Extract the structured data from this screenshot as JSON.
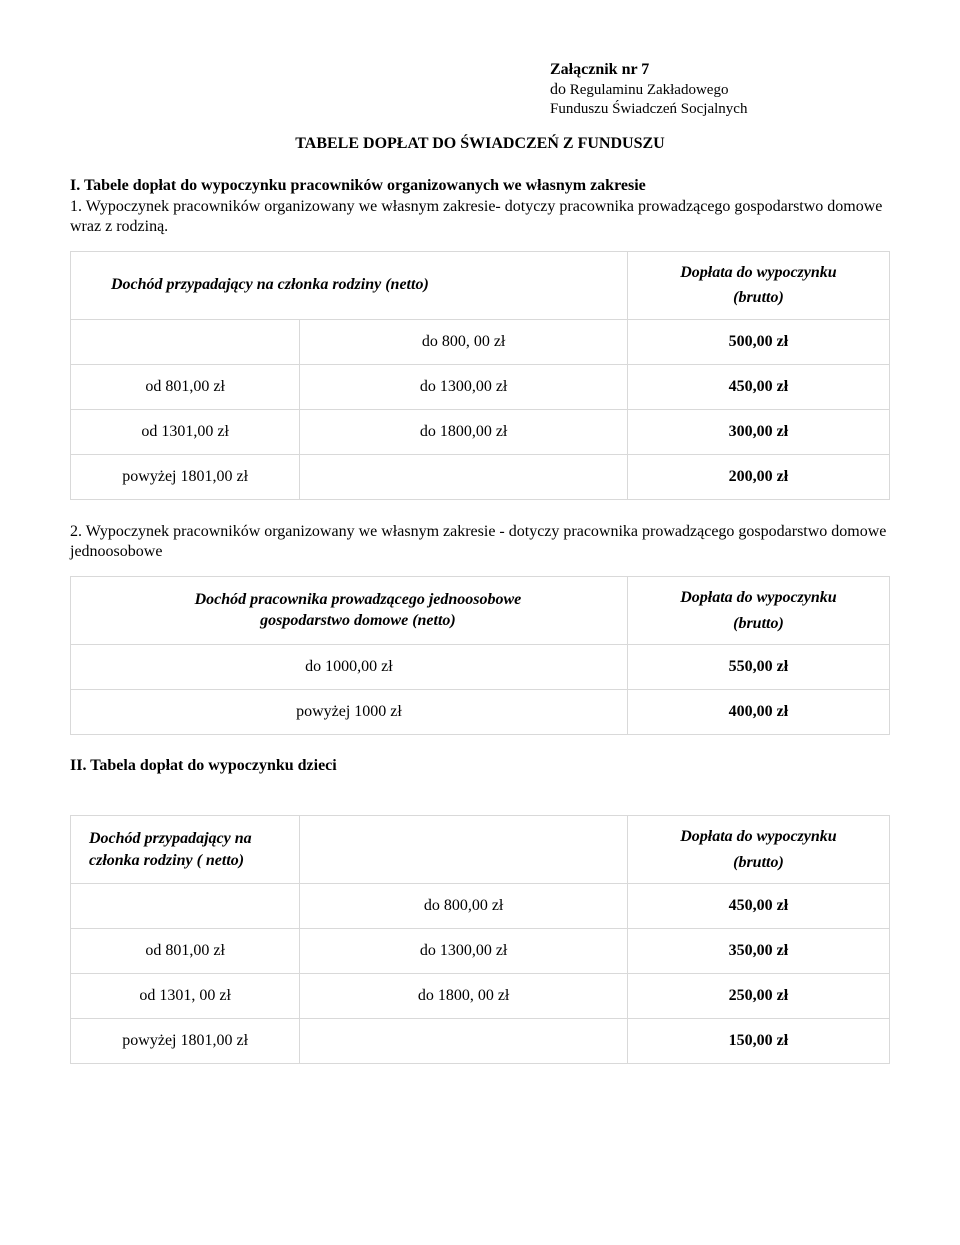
{
  "attachment": {
    "title": "Załącznik nr 7",
    "line1_prefix": "do",
    "line1_rest": " Regulaminu Zakładowego",
    "line2": "Funduszu Świadczeń Socjalnych"
  },
  "main_title": "TABELE DOPŁAT DO ŚWIADCZEŃ Z FUNDUSZU",
  "section_I": {
    "heading": "I. Tabele dopłat do wypoczynku pracowników organizowanych we własnym zakresie",
    "para1": "1. Wypoczynek pracowników organizowany we własnym zakresie- dotyczy pracownika prowadzącego gospodarstwo domowe wraz z rodziną.",
    "table1": {
      "header_left": "Dochód  przypadający na  członka rodziny (netto)",
      "header_right_l1": "Dopłata do wypoczynku",
      "header_right_l2": "(brutto)",
      "rows": [
        {
          "a": "",
          "b": "do 800, 00 zł",
          "c": "500,00 zł"
        },
        {
          "a": "od 801,00 zł",
          "b": "do 1300,00 zł",
          "c": "450,00 zł"
        },
        {
          "a": "od 1301,00 zł",
          "b": "do 1800,00 zł",
          "c": "300,00 zł"
        },
        {
          "a": "powyżej 1801,00 zł",
          "b": "",
          "c": "200,00 zł"
        }
      ]
    },
    "para2": "2. Wypoczynek pracowników organizowany we własnym zakresie - dotyczy pracownika prowadzącego gospodarstwo domowe jednoosobowe",
    "table2": {
      "header_left_l1": "Dochód  pracownika  prowadzącego  jednoosobowe",
      "header_left_l2": "gospodarstwo domowe (netto)",
      "header_right_l1": "Dopłata do wypoczynku",
      "header_right_l2": "(brutto)",
      "rows": [
        {
          "ab": "do 1000,00 zł",
          "c": "550,00 zł"
        },
        {
          "ab": "powyżej 1000 zł",
          "c": "400,00 zł"
        }
      ]
    }
  },
  "section_II": {
    "heading": "II. Tabela dopłat do wypoczynku dzieci",
    "table3": {
      "header_left_l1": "Dochód przypadający na",
      "header_left_l2": "członka rodziny ( netto)",
      "header_right_l1": "Dopłata do wypoczynku",
      "header_right_l2": "(brutto)",
      "rows": [
        {
          "a": "",
          "b": "do 800,00 zł",
          "c": "450,00 zł"
        },
        {
          "a": "od 801,00 zł",
          "b": "do 1300,00 zł",
          "c": "350,00 zł"
        },
        {
          "a": "od 1301, 00 zł",
          "b": "do 1800, 00 zł",
          "c": "250,00 zł"
        },
        {
          "a": "powyżej 1801,00 zł",
          "b": "",
          "c": "150,00 zł"
        }
      ]
    }
  }
}
